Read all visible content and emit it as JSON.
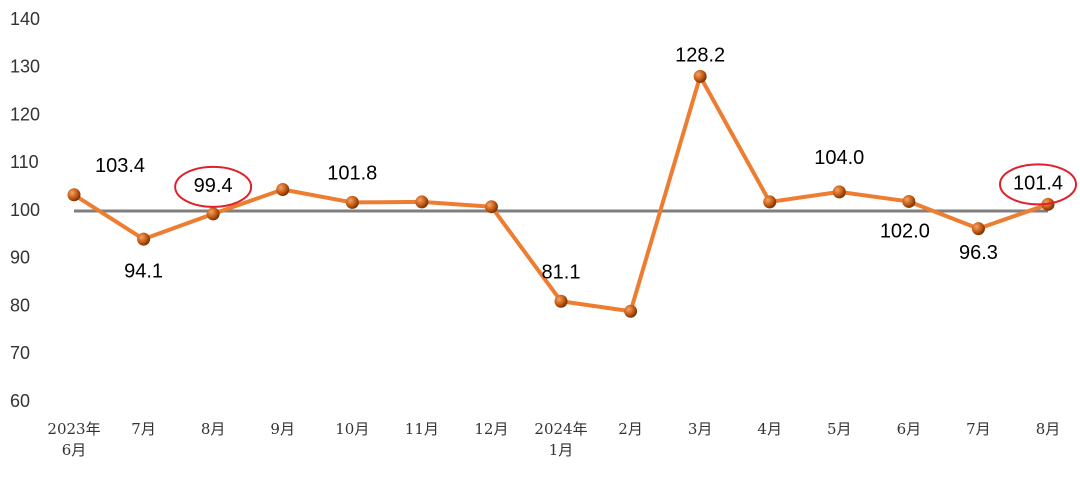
{
  "chart_data": {
    "type": "line",
    "categories": [
      "2023年\n6月",
      "7月",
      "8月",
      "9月",
      "10月",
      "11月",
      "12月",
      "2024年\n1月",
      "2月",
      "3月",
      "4月",
      "5月",
      "6月",
      "7月",
      "8月"
    ],
    "series": [
      {
        "color": "#ED7D31",
        "values": [
          103.4,
          94.1,
          99.4,
          104.5,
          101.8,
          101.9,
          100.9,
          81.1,
          79.0,
          128.2,
          101.9,
          104.0,
          102.0,
          96.3,
          101.4
        ],
        "value_labels": [
          "103.4",
          "94.1",
          "99.4",
          null,
          "101.8",
          null,
          null,
          "81.1",
          null,
          "128.2",
          null,
          "104.0",
          "102.0",
          "96.3",
          "101.4"
        ]
      }
    ],
    "reference_line": 100,
    "highlighted": [
      2,
      14
    ],
    "ylim": [
      60,
      140
    ],
    "yticks": [
      60,
      70,
      80,
      90,
      100,
      110,
      120,
      130,
      140
    ]
  }
}
